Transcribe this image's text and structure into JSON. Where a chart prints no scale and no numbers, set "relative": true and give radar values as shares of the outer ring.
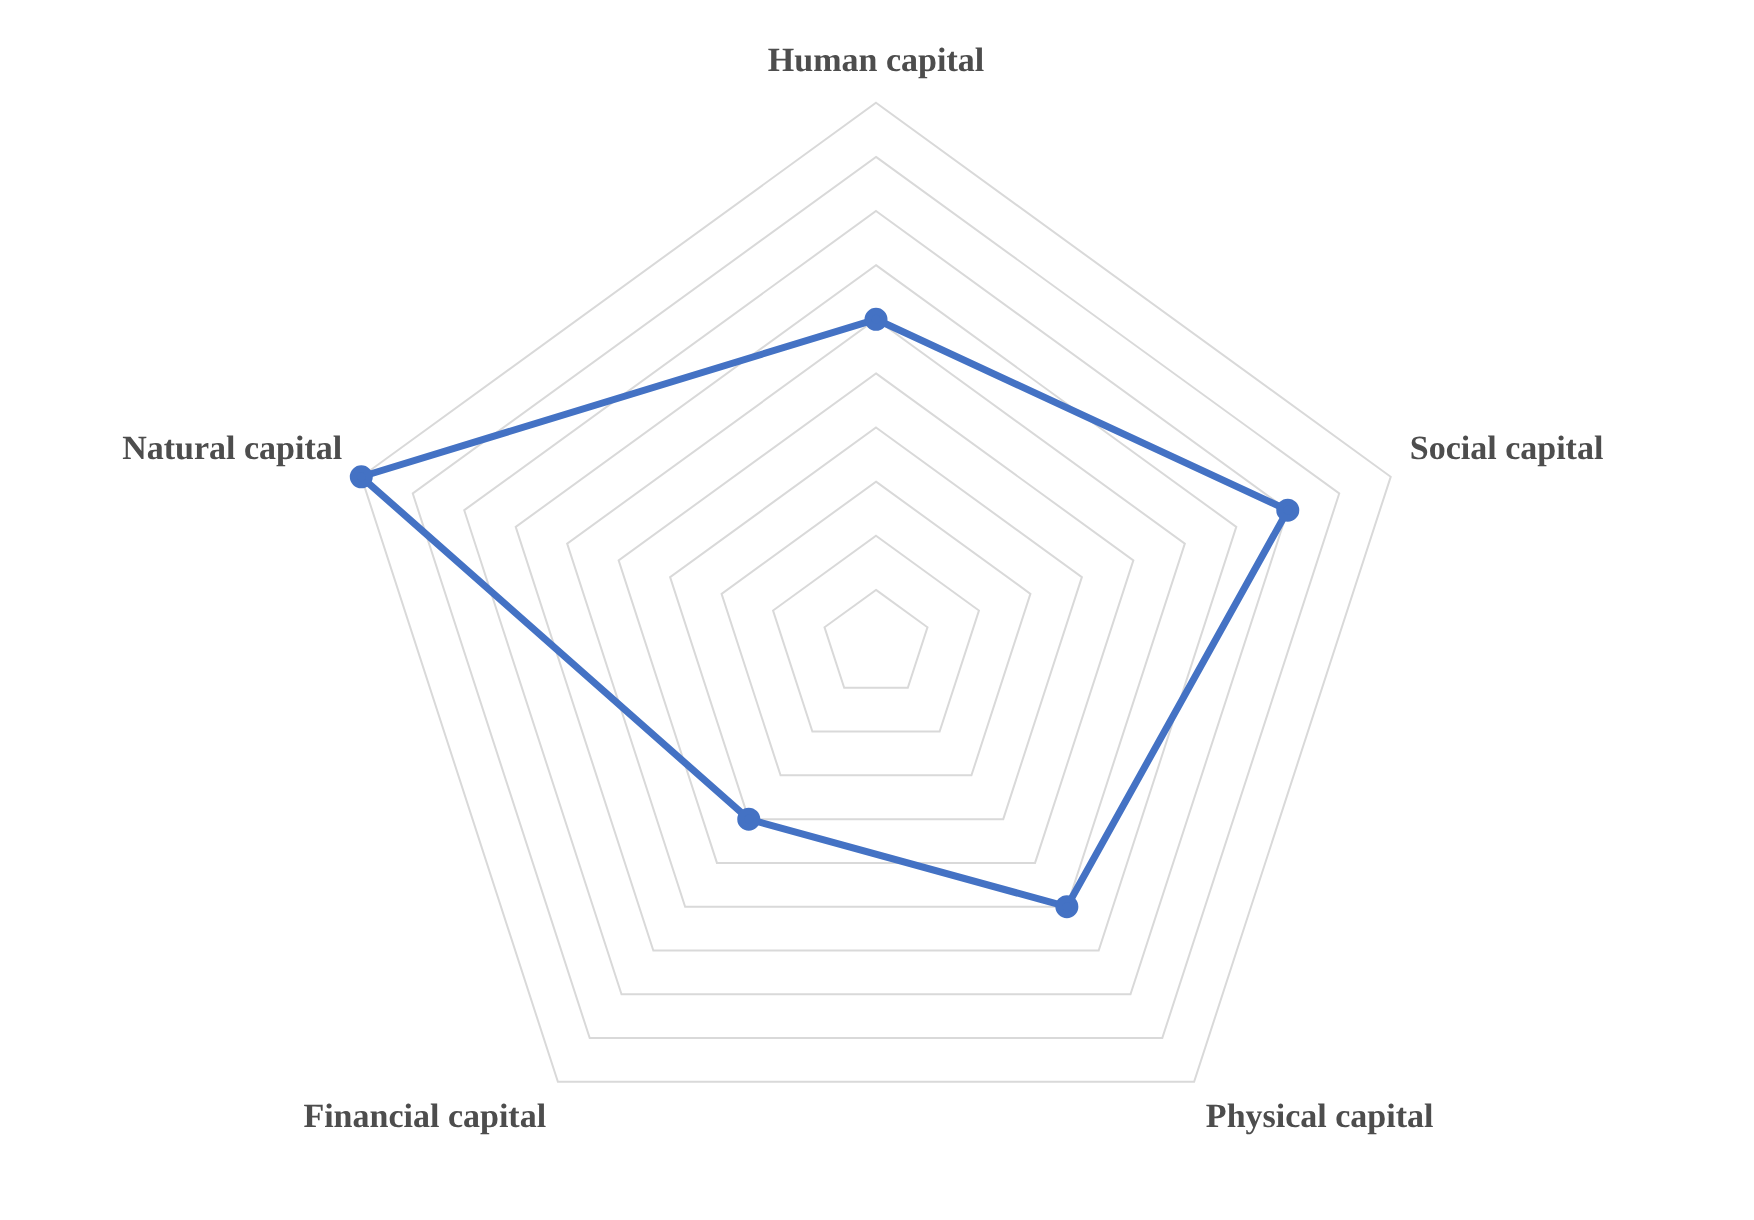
{
  "chart_data": {
    "type": "radar",
    "relative": true,
    "categories": [
      "Human capital",
      "Social capital",
      "Physical capital",
      "Financial capital",
      "Natural capital"
    ],
    "series": [
      {
        "color": "#4472c4",
        "values": [
          0.6,
          0.8,
          0.6,
          0.4,
          1.0
        ]
      }
    ],
    "marker": "circle",
    "legend": false
  }
}
